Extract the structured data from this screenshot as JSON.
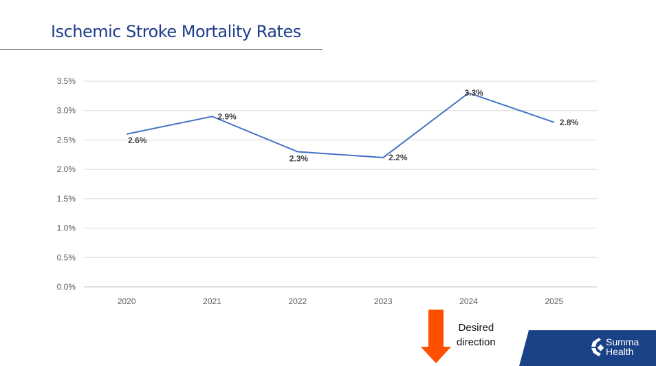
{
  "title": "Ischemic Stroke Mortality Rates",
  "chart_data": {
    "type": "line",
    "categories": [
      "2020",
      "2021",
      "2022",
      "2023",
      "2024",
      "2025"
    ],
    "series": [
      {
        "values": [
          2.6,
          2.9,
          2.3,
          2.2,
          3.3,
          2.8
        ],
        "color": "#4472c4"
      }
    ],
    "data_labels": [
      "2.6%",
      "2.9%",
      "2.3%",
      "2.2%",
      "3.3%",
      "2.8%"
    ],
    "yticks": [
      "0.0%",
      "0.5%",
      "1.0%",
      "1.5%",
      "2.0%",
      "2.5%",
      "3.0%",
      "3.5%"
    ],
    "ylim": [
      0,
      3.5
    ],
    "grid": true,
    "xlabel": "",
    "ylabel": ""
  },
  "annotation": {
    "line1": "Desired",
    "line2": "direction",
    "arrow_color": "#ff4f00",
    "arrow_direction": "down"
  },
  "logo": {
    "line1": "Summa",
    "line2": "Health",
    "band_color": "#1b4287"
  }
}
